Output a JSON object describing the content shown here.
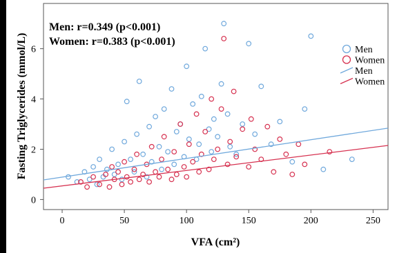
{
  "chart_data": {
    "type": "scatter",
    "xlabel": "VFA (cm²)",
    "ylabel": "Fasting Triglycerides (mmol/L)",
    "xlim": [
      -15,
      262
    ],
    "ylim": [
      -0.4,
      7.8
    ],
    "xticks": [
      0,
      50,
      100,
      150,
      200,
      250
    ],
    "yticks": [
      0,
      2,
      4,
      6
    ],
    "grid": false,
    "legend_position": "right",
    "annotations": [
      {
        "id": "men",
        "text": "Men: r=0.349 (p<0.001)"
      },
      {
        "id": "women",
        "text": "Women: r=0.383 (p<0.001)"
      }
    ],
    "legend": [
      {
        "label": "Men",
        "kind": "marker",
        "series": "Men"
      },
      {
        "label": "Women",
        "kind": "marker",
        "series": "Women"
      },
      {
        "label": "Men",
        "kind": "line",
        "series": "Men"
      },
      {
        "label": "Women",
        "kind": "line",
        "series": "Women"
      }
    ],
    "series": [
      {
        "name": "Men",
        "color": "#6fa8dc",
        "marker": "circle-open",
        "points_shown": 60,
        "points": [
          [
            5,
            0.9
          ],
          [
            12,
            0.7
          ],
          [
            18,
            1.1
          ],
          [
            22,
            0.8
          ],
          [
            25,
            1.3
          ],
          [
            28,
            0.6
          ],
          [
            30,
            1.6
          ],
          [
            33,
            0.9
          ],
          [
            36,
            1.2
          ],
          [
            40,
            2.0
          ],
          [
            42,
            1.0
          ],
          [
            45,
            1.4
          ],
          [
            48,
            0.8
          ],
          [
            50,
            2.3
          ],
          [
            52,
            3.9
          ],
          [
            55,
            1.6
          ],
          [
            58,
            1.1
          ],
          [
            60,
            2.6
          ],
          [
            62,
            4.7
          ],
          [
            65,
            1.8
          ],
          [
            68,
            0.9
          ],
          [
            70,
            2.9
          ],
          [
            72,
            1.5
          ],
          [
            75,
            3.3
          ],
          [
            78,
            2.1
          ],
          [
            80,
            1.2
          ],
          [
            82,
            3.6
          ],
          [
            85,
            1.9
          ],
          [
            88,
            4.4
          ],
          [
            90,
            1.4
          ],
          [
            92,
            2.7
          ],
          [
            95,
            3.0
          ],
          [
            98,
            1.7
          ],
          [
            100,
            5.3
          ],
          [
            102,
            2.4
          ],
          [
            105,
            3.8
          ],
          [
            108,
            1.6
          ],
          [
            110,
            2.2
          ],
          [
            112,
            4.1
          ],
          [
            115,
            6.0
          ],
          [
            118,
            2.8
          ],
          [
            120,
            1.9
          ],
          [
            122,
            3.2
          ],
          [
            125,
            2.5
          ],
          [
            128,
            4.6
          ],
          [
            130,
            7.0
          ],
          [
            133,
            3.4
          ],
          [
            135,
            2.1
          ],
          [
            140,
            1.8
          ],
          [
            145,
            3.0
          ],
          [
            150,
            6.2
          ],
          [
            155,
            2.6
          ],
          [
            160,
            4.5
          ],
          [
            168,
            2.2
          ],
          [
            175,
            3.1
          ],
          [
            185,
            1.5
          ],
          [
            195,
            3.6
          ],
          [
            200,
            6.5
          ],
          [
            210,
            1.2
          ],
          [
            233,
            1.6
          ]
        ],
        "regression_line": {
          "x": [
            -15,
            262
          ],
          "y": [
            0.78,
            2.84
          ]
        }
      },
      {
        "name": "Women",
        "color": "#d6304f",
        "marker": "circle-open",
        "points_shown": 60,
        "points": [
          [
            15,
            0.7
          ],
          [
            20,
            0.5
          ],
          [
            25,
            0.9
          ],
          [
            30,
            0.6
          ],
          [
            35,
            1.0
          ],
          [
            38,
            0.5
          ],
          [
            40,
            1.3
          ],
          [
            42,
            0.8
          ],
          [
            45,
            1.1
          ],
          [
            48,
            0.6
          ],
          [
            50,
            1.5
          ],
          [
            52,
            0.9
          ],
          [
            55,
            0.7
          ],
          [
            58,
            1.2
          ],
          [
            60,
            1.8
          ],
          [
            62,
            0.8
          ],
          [
            65,
            1.0
          ],
          [
            68,
            1.4
          ],
          [
            70,
            0.7
          ],
          [
            72,
            2.1
          ],
          [
            75,
            1.1
          ],
          [
            78,
            0.9
          ],
          [
            80,
            1.6
          ],
          [
            82,
            2.5
          ],
          [
            85,
            1.2
          ],
          [
            88,
            0.8
          ],
          [
            90,
            1.9
          ],
          [
            92,
            1.0
          ],
          [
            95,
            3.0
          ],
          [
            98,
            1.3
          ],
          [
            100,
            0.9
          ],
          [
            102,
            2.2
          ],
          [
            105,
            1.5
          ],
          [
            108,
            3.4
          ],
          [
            110,
            1.1
          ],
          [
            112,
            1.8
          ],
          [
            115,
            2.7
          ],
          [
            118,
            1.2
          ],
          [
            120,
            4.0
          ],
          [
            122,
            1.6
          ],
          [
            125,
            2.0
          ],
          [
            128,
            3.6
          ],
          [
            130,
            6.4
          ],
          [
            133,
            1.4
          ],
          [
            135,
            2.3
          ],
          [
            138,
            4.3
          ],
          [
            140,
            1.7
          ],
          [
            145,
            2.8
          ],
          [
            150,
            1.3
          ],
          [
            152,
            3.2
          ],
          [
            155,
            2.0
          ],
          [
            160,
            1.6
          ],
          [
            165,
            2.9
          ],
          [
            170,
            1.1
          ],
          [
            175,
            2.4
          ],
          [
            180,
            1.8
          ],
          [
            185,
            1.0
          ],
          [
            190,
            2.2
          ],
          [
            195,
            1.4
          ],
          [
            215,
            1.9
          ]
        ],
        "regression_line": {
          "x": [
            -15,
            262
          ],
          "y": [
            0.45,
            2.15
          ]
        }
      }
    ]
  }
}
